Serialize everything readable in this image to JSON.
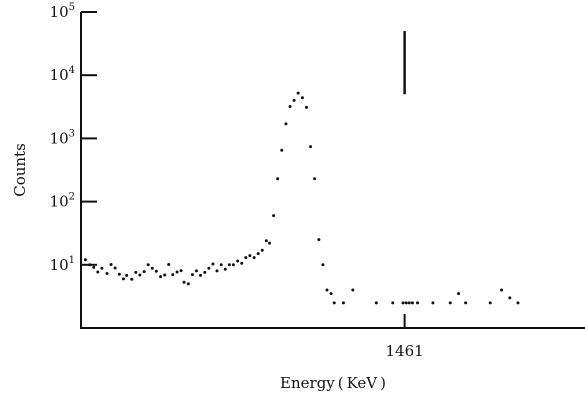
{
  "chart_data": {
    "type": "scatter",
    "title": "",
    "xlabel": "Energy ( KeV )",
    "ylabel": "Counts",
    "y_scale": "log",
    "ylim": [
      1,
      100000
    ],
    "xlim": [
      1278,
      1563
    ],
    "y_ticks": [
      {
        "base": "10",
        "exp": "1",
        "value": 10
      },
      {
        "base": "10",
        "exp": "2",
        "value": 100
      },
      {
        "base": "10",
        "exp": "3",
        "value": 1000
      },
      {
        "base": "10",
        "exp": "4",
        "value": 10000
      },
      {
        "base": "10",
        "exp": "5",
        "value": 100000
      }
    ],
    "x_ticks": [
      {
        "label": "1461",
        "value": 1461
      }
    ],
    "peak_marker": {
      "x": 1461,
      "y_from": 5000,
      "y_to": 50000
    },
    "grid": false,
    "legend": "none",
    "points": [
      {
        "x": 1280.5,
        "y": 12.0
      },
      {
        "x": 1282.9,
        "y": 10.0
      },
      {
        "x": 1285.2,
        "y": 9.1
      },
      {
        "x": 1287.5,
        "y": 7.7
      },
      {
        "x": 1289.8,
        "y": 8.8
      },
      {
        "x": 1292.7,
        "y": 7.3
      },
      {
        "x": 1295.0,
        "y": 10.1
      },
      {
        "x": 1297.3,
        "y": 8.9
      },
      {
        "x": 1299.7,
        "y": 7.1
      },
      {
        "x": 1302.0,
        "y": 6.0
      },
      {
        "x": 1303.8,
        "y": 6.8
      },
      {
        "x": 1306.7,
        "y": 5.9
      },
      {
        "x": 1309.0,
        "y": 7.6
      },
      {
        "x": 1311.3,
        "y": 6.9
      },
      {
        "x": 1313.7,
        "y": 7.8
      },
      {
        "x": 1316.0,
        "y": 10.0
      },
      {
        "x": 1318.3,
        "y": 8.8
      },
      {
        "x": 1320.6,
        "y": 7.9
      },
      {
        "x": 1323.0,
        "y": 6.5
      },
      {
        "x": 1325.3,
        "y": 6.9
      },
      {
        "x": 1327.6,
        "y": 10.1
      },
      {
        "x": 1329.9,
        "y": 7.0
      },
      {
        "x": 1332.3,
        "y": 7.7
      },
      {
        "x": 1334.6,
        "y": 8.1
      },
      {
        "x": 1336.3,
        "y": 5.3
      },
      {
        "x": 1338.7,
        "y": 5.0
      },
      {
        "x": 1341.0,
        "y": 7.0
      },
      {
        "x": 1343.3,
        "y": 8.0
      },
      {
        "x": 1345.6,
        "y": 6.8
      },
      {
        "x": 1348.0,
        "y": 7.6
      },
      {
        "x": 1350.3,
        "y": 8.8
      },
      {
        "x": 1352.6,
        "y": 10.3
      },
      {
        "x": 1354.9,
        "y": 8.0
      },
      {
        "x": 1357.3,
        "y": 10.0
      },
      {
        "x": 1359.6,
        "y": 8.5
      },
      {
        "x": 1361.9,
        "y": 10.0
      },
      {
        "x": 1364.2,
        "y": 10.0
      },
      {
        "x": 1366.6,
        "y": 11.5
      },
      {
        "x": 1368.9,
        "y": 10.6
      },
      {
        "x": 1371.2,
        "y": 13.0
      },
      {
        "x": 1373.5,
        "y": 14.0
      },
      {
        "x": 1375.9,
        "y": 13.0
      },
      {
        "x": 1378.2,
        "y": 15.0
      },
      {
        "x": 1380.5,
        "y": 17.0
      },
      {
        "x": 1382.8,
        "y": 24.0
      },
      {
        "x": 1384.6,
        "y": 22.0
      },
      {
        "x": 1386.9,
        "y": 60.0
      },
      {
        "x": 1389.2,
        "y": 230.0
      },
      {
        "x": 1391.5,
        "y": 650.0
      },
      {
        "x": 1393.9,
        "y": 1700.0
      },
      {
        "x": 1396.2,
        "y": 3200.0
      },
      {
        "x": 1398.5,
        "y": 4000.0
      },
      {
        "x": 1400.8,
        "y": 5200.0
      },
      {
        "x": 1403.2,
        "y": 4400.0
      },
      {
        "x": 1405.5,
        "y": 3100.0
      },
      {
        "x": 1407.8,
        "y": 740.0
      },
      {
        "x": 1410.1,
        "y": 230.0
      },
      {
        "x": 1412.5,
        "y": 25.0
      },
      {
        "x": 1414.8,
        "y": 10.0
      },
      {
        "x": 1417.1,
        "y": 4.0
      },
      {
        "x": 1419.4,
        "y": 3.5
      },
      {
        "x": 1421.2,
        "y": 2.5
      },
      {
        "x": 1426.4,
        "y": 2.5
      },
      {
        "x": 1431.7,
        "y": 4.0
      },
      {
        "x": 1445.0,
        "y": 2.5
      },
      {
        "x": 1454.3,
        "y": 2.5
      },
      {
        "x": 1460.1,
        "y": 2.5
      },
      {
        "x": 1461.9,
        "y": 2.5
      },
      {
        "x": 1463.6,
        "y": 2.5
      },
      {
        "x": 1465.4,
        "y": 2.5
      },
      {
        "x": 1468.3,
        "y": 2.5
      },
      {
        "x": 1477.0,
        "y": 2.5
      },
      {
        "x": 1486.8,
        "y": 2.5
      },
      {
        "x": 1491.5,
        "y": 3.5
      },
      {
        "x": 1495.5,
        "y": 2.5
      },
      {
        "x": 1509.4,
        "y": 2.5
      },
      {
        "x": 1515.8,
        "y": 4.0
      },
      {
        "x": 1520.5,
        "y": 3.0
      },
      {
        "x": 1525.1,
        "y": 2.5
      }
    ]
  }
}
